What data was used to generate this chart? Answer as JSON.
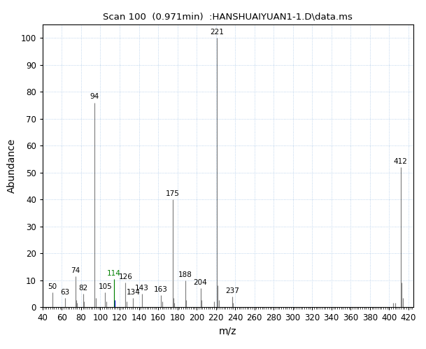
{
  "title": "Scan 100  (0.971min)  :HANSHUAIYUAN1-1.D\\data.ms",
  "xlabel": "m/z",
  "ylabel": "Abundance",
  "xlim": [
    40,
    425
  ],
  "ylim": [
    0,
    105
  ],
  "xticks": [
    40,
    60,
    80,
    100,
    120,
    140,
    160,
    180,
    200,
    220,
    240,
    260,
    280,
    300,
    320,
    340,
    360,
    380,
    400,
    420
  ],
  "yticks": [
    0,
    10,
    20,
    30,
    40,
    50,
    60,
    70,
    80,
    90,
    100
  ],
  "peaks": [
    {
      "mz": 50,
      "abundance": 5.5,
      "label": "50",
      "label_color": "#000000",
      "line_color": "#808080"
    },
    {
      "mz": 63,
      "abundance": 3.5,
      "label": "63",
      "label_color": "#000000",
      "line_color": "#808080"
    },
    {
      "mz": 74,
      "abundance": 11.5,
      "label": "74",
      "label_color": "#000000",
      "line_color": "#808080"
    },
    {
      "mz": 75,
      "abundance": 2.5,
      "label": null,
      "label_color": "#000000",
      "line_color": "#808080"
    },
    {
      "mz": 76,
      "abundance": 1.5,
      "label": null,
      "label_color": "#000000",
      "line_color": "#808080"
    },
    {
      "mz": 82,
      "abundance": 5.0,
      "label": "82",
      "label_color": "#000000",
      "line_color": "#808080"
    },
    {
      "mz": 83,
      "abundance": 2.0,
      "label": null,
      "label_color": "#000000",
      "line_color": "#808080"
    },
    {
      "mz": 94,
      "abundance": 76.0,
      "label": "94",
      "label_color": "#000000",
      "line_color": "#808080"
    },
    {
      "mz": 95,
      "abundance": 3.5,
      "label": null,
      "label_color": "#000000",
      "line_color": "#808080"
    },
    {
      "mz": 105,
      "abundance": 5.5,
      "label": "105",
      "label_color": "#000000",
      "line_color": "#808080"
    },
    {
      "mz": 106,
      "abundance": 2.0,
      "label": null,
      "label_color": "#000000",
      "line_color": "#808080"
    },
    {
      "mz": 114,
      "abundance": 10.5,
      "label": "114",
      "label_color": "#008000",
      "line_color": "#008000"
    },
    {
      "mz": 115,
      "abundance": 2.5,
      "label": null,
      "label_color": "#000000",
      "line_color": "#0000cc"
    },
    {
      "mz": 126,
      "abundance": 9.0,
      "label": "126",
      "label_color": "#000000",
      "line_color": "#808080"
    },
    {
      "mz": 127,
      "abundance": 2.0,
      "label": null,
      "label_color": "#000000",
      "line_color": "#808080"
    },
    {
      "mz": 134,
      "abundance": 3.5,
      "label": "134",
      "label_color": "#000000",
      "line_color": "#808080"
    },
    {
      "mz": 143,
      "abundance": 5.0,
      "label": "143",
      "label_color": "#000000",
      "line_color": "#808080"
    },
    {
      "mz": 163,
      "abundance": 4.5,
      "label": "163",
      "label_color": "#000000",
      "line_color": "#808080"
    },
    {
      "mz": 164,
      "abundance": 2.0,
      "label": null,
      "label_color": "#000000",
      "line_color": "#808080"
    },
    {
      "mz": 175,
      "abundance": 40.0,
      "label": "175",
      "label_color": "#000000",
      "line_color": "#808080"
    },
    {
      "mz": 176,
      "abundance": 3.5,
      "label": null,
      "label_color": "#000000",
      "line_color": "#808080"
    },
    {
      "mz": 177,
      "abundance": 1.5,
      "label": null,
      "label_color": "#000000",
      "line_color": "#808080"
    },
    {
      "mz": 188,
      "abundance": 10.0,
      "label": "188",
      "label_color": "#000000",
      "line_color": "#808080"
    },
    {
      "mz": 189,
      "abundance": 2.5,
      "label": null,
      "label_color": "#000000",
      "line_color": "#808080"
    },
    {
      "mz": 204,
      "abundance": 7.0,
      "label": "204",
      "label_color": "#000000",
      "line_color": "#808080"
    },
    {
      "mz": 205,
      "abundance": 2.5,
      "label": null,
      "label_color": "#000000",
      "line_color": "#808080"
    },
    {
      "mz": 218,
      "abundance": 2.0,
      "label": null,
      "label_color": "#000000",
      "line_color": "#808080"
    },
    {
      "mz": 221,
      "abundance": 100.0,
      "label": "221",
      "label_color": "#000000",
      "line_color": "#808080"
    },
    {
      "mz": 222,
      "abundance": 8.0,
      "label": null,
      "label_color": "#000000",
      "line_color": "#808080"
    },
    {
      "mz": 223,
      "abundance": 2.5,
      "label": null,
      "label_color": "#000000",
      "line_color": "#808080"
    },
    {
      "mz": 237,
      "abundance": 4.0,
      "label": "237",
      "label_color": "#000000",
      "line_color": "#808080"
    },
    {
      "mz": 238,
      "abundance": 1.5,
      "label": null,
      "label_color": "#000000",
      "line_color": "#808080"
    },
    {
      "mz": 404,
      "abundance": 1.5,
      "label": null,
      "label_color": "#000000",
      "line_color": "#808080"
    },
    {
      "mz": 406,
      "abundance": 1.5,
      "label": null,
      "label_color": "#000000",
      "line_color": "#808080"
    },
    {
      "mz": 412,
      "abundance": 52.0,
      "label": "412",
      "label_color": "#000000",
      "line_color": "#808080"
    },
    {
      "mz": 413,
      "abundance": 9.0,
      "label": null,
      "label_color": "#000000",
      "line_color": "#808080"
    },
    {
      "mz": 414,
      "abundance": 3.5,
      "label": null,
      "label_color": "#000000",
      "line_color": "#808080"
    }
  ],
  "background_color": "#ffffff",
  "plot_bg_color": "#ffffff",
  "spine_color": "#000000",
  "title_fontsize": 9.5,
  "label_fontsize": 7.5,
  "axis_label_fontsize": 10,
  "tick_fontsize": 8.5,
  "grid_color": "#aac8e8",
  "grid_linestyle": ":"
}
